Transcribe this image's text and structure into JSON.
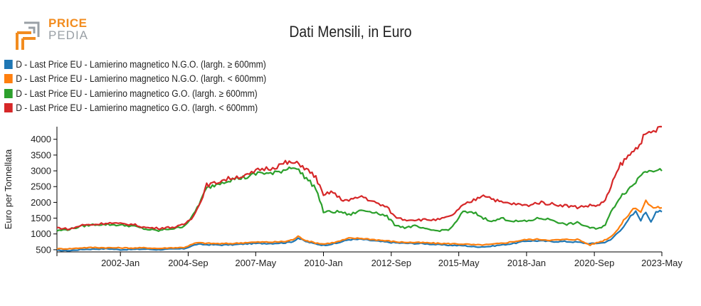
{
  "logo": {
    "line1": "PRICE",
    "line2": "PEDIA"
  },
  "colors": {
    "blue": "#1f77b4",
    "orange": "#ff7f0e",
    "green": "#2ca02c",
    "red": "#d62728",
    "logo_orange": "#f28c1f",
    "logo_grey": "#9aa0a6"
  },
  "chart_data": {
    "type": "line",
    "title": "Dati Mensili, in Euro",
    "xlabel": "",
    "ylabel": "Euro per Tonnellata",
    "x_range": [
      1999.5,
      2023.33
    ],
    "ylim": [
      430,
      4400
    ],
    "y_ticks": [
      500,
      1000,
      1500,
      2000,
      2500,
      3000,
      3500,
      4000
    ],
    "x_ticks": [
      {
        "pos": 2002.0,
        "label": "2002-Jan"
      },
      {
        "pos": 2004.67,
        "label": "2004-Sep"
      },
      {
        "pos": 2007.33,
        "label": "2007-May"
      },
      {
        "pos": 2010.0,
        "label": "2010-Jan"
      },
      {
        "pos": 2012.67,
        "label": "2012-Sep"
      },
      {
        "pos": 2015.33,
        "label": "2015-May"
      },
      {
        "pos": 2018.0,
        "label": "2018-Jan"
      },
      {
        "pos": 2020.67,
        "label": "2020-Sep"
      },
      {
        "pos": 2023.33,
        "label": "2023-May"
      }
    ],
    "legend_position": "top-left",
    "series": [
      {
        "name": "D - Last Price EU - Lamierino magnetico N.G.O. (largh. ≥ 600mm)",
        "color": "#1f77b4",
        "x": [
          1999.5,
          2000.0,
          2000.5,
          2001.0,
          2001.5,
          2002.0,
          2002.5,
          2003.0,
          2003.5,
          2004.0,
          2004.5,
          2005.0,
          2005.5,
          2006.0,
          2006.5,
          2007.0,
          2007.5,
          2008.0,
          2008.5,
          2008.8,
          2009.0,
          2009.3,
          2009.6,
          2010.0,
          2010.5,
          2011.0,
          2011.5,
          2012.0,
          2012.5,
          2013.0,
          2013.5,
          2014.0,
          2014.5,
          2015.0,
          2015.5,
          2016.0,
          2016.5,
          2017.0,
          2017.5,
          2018.0,
          2018.5,
          2019.0,
          2019.5,
          2020.0,
          2020.5,
          2021.0,
          2021.3,
          2021.6,
          2021.9,
          2022.1,
          2022.3,
          2022.5,
          2022.7,
          2022.9,
          2023.1,
          2023.33
        ],
        "values": [
          480,
          470,
          510,
          520,
          530,
          500,
          510,
          520,
          500,
          520,
          530,
          670,
          660,
          650,
          660,
          690,
          700,
          700,
          720,
          760,
          870,
          760,
          700,
          640,
          700,
          820,
          830,
          780,
          740,
          710,
          700,
          690,
          660,
          640,
          630,
          590,
          600,
          650,
          700,
          780,
          780,
          760,
          760,
          740,
          690,
          720,
          800,
          1050,
          1300,
          1550,
          1700,
          1450,
          1700,
          1400,
          1720,
          1700
        ]
      },
      {
        "name": "D - Last Price EU - Lamierino magnetico N.G.O. (largh. < 600mm)",
        "color": "#ff7f0e",
        "x": [
          1999.5,
          2000.0,
          2000.5,
          2001.0,
          2001.5,
          2002.0,
          2002.5,
          2003.0,
          2003.5,
          2004.0,
          2004.5,
          2005.0,
          2005.5,
          2006.0,
          2006.5,
          2007.0,
          2007.5,
          2008.0,
          2008.5,
          2008.8,
          2009.0,
          2009.3,
          2009.6,
          2010.0,
          2010.5,
          2011.0,
          2011.5,
          2012.0,
          2012.5,
          2013.0,
          2013.5,
          2014.0,
          2014.5,
          2015.0,
          2015.5,
          2016.0,
          2016.5,
          2017.0,
          2017.5,
          2018.0,
          2018.5,
          2019.0,
          2019.5,
          2020.0,
          2020.5,
          2021.0,
          2021.3,
          2021.6,
          2021.9,
          2022.1,
          2022.3,
          2022.5,
          2022.7,
          2022.9,
          2023.1,
          2023.33
        ],
        "values": [
          530,
          530,
          560,
          570,
          560,
          560,
          550,
          560,
          540,
          560,
          570,
          720,
          700,
          690,
          700,
          730,
          740,
          740,
          760,
          820,
          920,
          800,
          730,
          680,
          740,
          860,
          860,
          820,
          780,
          740,
          730,
          720,
          700,
          690,
          680,
          650,
          660,
          700,
          760,
          820,
          830,
          800,
          820,
          830,
          650,
          780,
          900,
          1150,
          1500,
          1700,
          1850,
          1700,
          2050,
          1850,
          1850,
          1830
        ]
      },
      {
        "name": "D - Last Price EU - Lamierino magnetico G.O. (largh. ≥ 600mm)",
        "color": "#2ca02c",
        "x": [
          1999.5,
          2000.0,
          2000.5,
          2001.0,
          2001.5,
          2002.0,
          2002.5,
          2003.0,
          2003.5,
          2003.8,
          2004.2,
          2004.5,
          2004.8,
          2005.1,
          2005.4,
          2005.7,
          2006.0,
          2006.5,
          2007.0,
          2007.5,
          2008.0,
          2008.5,
          2008.8,
          2009.1,
          2009.4,
          2009.7,
          2010.0,
          2010.3,
          2010.7,
          2011.0,
          2011.5,
          2012.0,
          2012.5,
          2012.8,
          2013.2,
          2013.6,
          2014.0,
          2014.5,
          2015.0,
          2015.5,
          2016.0,
          2016.3,
          2016.7,
          2017.0,
          2017.5,
          2018.0,
          2018.5,
          2019.0,
          2019.5,
          2020.0,
          2020.5,
          2020.8,
          2021.1,
          2021.4,
          2021.7,
          2022.0,
          2022.3,
          2022.6,
          2022.9,
          2023.1,
          2023.33
        ],
        "values": [
          1100,
          1150,
          1250,
          1300,
          1300,
          1280,
          1250,
          1150,
          1100,
          1150,
          1180,
          1250,
          1500,
          1950,
          2450,
          2550,
          2650,
          2750,
          2800,
          2950,
          2900,
          3050,
          3150,
          2950,
          2700,
          2450,
          1700,
          1700,
          1700,
          1600,
          1750,
          1700,
          1550,
          1300,
          1200,
          1250,
          1150,
          1100,
          1150,
          1700,
          1650,
          1500,
          1400,
          1500,
          1400,
          1400,
          1500,
          1450,
          1300,
          1350,
          1200,
          1150,
          1300,
          1800,
          2200,
          2400,
          2650,
          3000,
          3050,
          3000,
          3000
        ]
      },
      {
        "name": "D - Last Price EU - Lamierino magnetico G.O. (largh. < 600mm)",
        "color": "#d62728",
        "x": [
          1999.5,
          2000.0,
          2000.5,
          2001.0,
          2001.5,
          2002.0,
          2002.5,
          2003.0,
          2003.5,
          2003.8,
          2004.2,
          2004.5,
          2004.8,
          2005.1,
          2005.4,
          2005.7,
          2006.0,
          2006.5,
          2007.0,
          2007.5,
          2008.0,
          2008.5,
          2008.8,
          2009.1,
          2009.4,
          2009.7,
          2010.0,
          2010.3,
          2010.7,
          2011.0,
          2011.5,
          2012.0,
          2012.5,
          2012.8,
          2013.2,
          2013.6,
          2014.0,
          2014.5,
          2015.0,
          2015.5,
          2016.0,
          2016.3,
          2016.7,
          2017.0,
          2017.5,
          2018.0,
          2018.5,
          2019.0,
          2019.5,
          2020.0,
          2020.5,
          2020.8,
          2021.1,
          2021.4,
          2021.7,
          2022.0,
          2022.3,
          2022.6,
          2022.9,
          2023.1,
          2023.33
        ],
        "values": [
          1200,
          1150,
          1280,
          1300,
          1350,
          1320,
          1300,
          1200,
          1180,
          1200,
          1220,
          1300,
          1500,
          1900,
          2550,
          2600,
          2700,
          2800,
          2850,
          3050,
          3100,
          3250,
          3250,
          3200,
          3000,
          2800,
          2200,
          2350,
          2100,
          2050,
          2200,
          2000,
          1850,
          1550,
          1450,
          1450,
          1450,
          1450,
          1550,
          1900,
          2100,
          2250,
          2100,
          2000,
          1950,
          1900,
          2000,
          1950,
          1900,
          1850,
          1900,
          1900,
          2050,
          2650,
          3200,
          3450,
          3700,
          4050,
          4200,
          4300,
          4400
        ]
      }
    ]
  }
}
